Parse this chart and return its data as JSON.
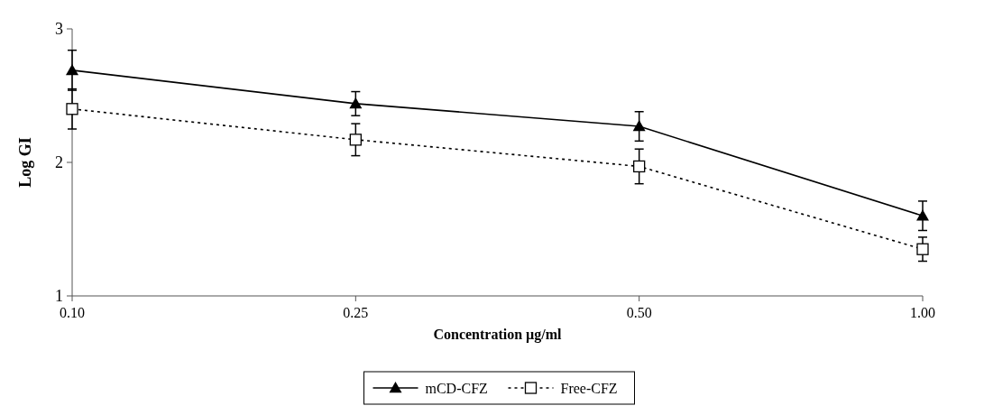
{
  "chart_data": {
    "type": "line",
    "xlabel": "Concentration µg/ml",
    "ylabel": "Log GI",
    "categories": [
      "0.10",
      "0.25",
      "0.50",
      "1.00"
    ],
    "ylim": [
      1,
      3
    ],
    "yticks": [
      1,
      2,
      3
    ],
    "grid": false,
    "legend": "bottom",
    "series": [
      {
        "name": "mCD-CFZ",
        "color": "#000000",
        "values": [
          2.69,
          2.44,
          2.27,
          1.6
        ],
        "errors": [
          0.15,
          0.09,
          0.11,
          0.11
        ],
        "marker": "triangle",
        "line_style": "solid"
      },
      {
        "name": "Free-CFZ",
        "color": "#000000",
        "values": [
          2.4,
          2.17,
          1.97,
          1.35
        ],
        "errors": [
          0.15,
          0.12,
          0.13,
          0.09
        ],
        "marker": "square",
        "line_style": "dotted"
      }
    ]
  }
}
